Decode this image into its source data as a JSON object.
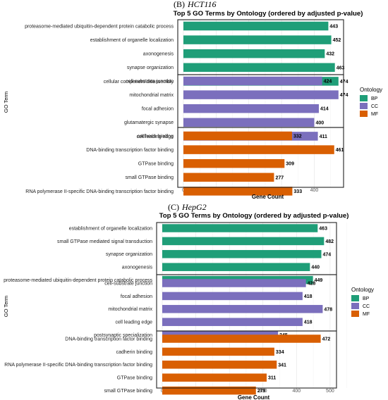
{
  "colors": {
    "BP": "#1f9e78",
    "CC": "#7b6fbd",
    "MF": "#d95f02"
  },
  "chart_data": [
    {
      "type": "bar",
      "orientation": "horizontal",
      "panel_label": "(B)",
      "panel_name": "HCT116",
      "title": "Top 5 GO Terms by Ontology (ordered by adjusted p-value)",
      "xlabel": "Gene Count",
      "ylabel": "GO Term",
      "xlim": [
        0,
        490
      ],
      "xticks": [
        0,
        100,
        200,
        300,
        400
      ],
      "grid": true,
      "legend": {
        "title": "Ontology",
        "position": "right",
        "items": [
          "BP",
          "CC",
          "MF"
        ]
      },
      "groups": [
        {
          "ontology": "BP",
          "terms": [
            {
              "term": "proteasome-mediated ubiquitin-dependent protein catabolic process",
              "count": 443
            },
            {
              "term": "establishment of organelle localization",
              "count": 452
            },
            {
              "term": "axonogenesis",
              "count": 432
            },
            {
              "term": "synapse organization",
              "count": 463
            },
            {
              "term": "cellular component disassembly",
              "count": 474
            }
          ]
        },
        {
          "ontology": "CC",
          "terms": [
            {
              "term": "cell-substrate junction",
              "count": 424
            },
            {
              "term": "mitochondrial matrix",
              "count": 474
            },
            {
              "term": "focal adhesion",
              "count": 414
            },
            {
              "term": "glutamatergic synapse",
              "count": 400
            },
            {
              "term": "cell leading edge",
              "count": 411
            }
          ]
        },
        {
          "ontology": "MF",
          "terms": [
            {
              "term": "cadherin binding",
              "count": 332
            },
            {
              "term": "DNA-binding transcription factor binding",
              "count": 461
            },
            {
              "term": "GTPase binding",
              "count": 309
            },
            {
              "term": "small GTPase binding",
              "count": 277
            },
            {
              "term": "RNA polymerase II-specific DNA-binding transcription factor binding",
              "count": 333
            }
          ]
        }
      ]
    },
    {
      "type": "bar",
      "orientation": "horizontal",
      "panel_label": "(C)",
      "panel_name": "HepG2",
      "title": "Top 5 GO Terms by Ontology (ordered by adjusted p-value)",
      "xlabel": "Gene Count",
      "ylabel": "GO Term",
      "xlim": [
        0,
        500
      ],
      "xticks": [
        0,
        100,
        200,
        300,
        400,
        500
      ],
      "grid": true,
      "legend": {
        "title": "Ontology",
        "position": "right",
        "items": [
          "BP",
          "CC",
          "MF"
        ]
      },
      "groups": [
        {
          "ontology": "BP",
          "terms": [
            {
              "term": "establishment of organelle localization",
              "count": 463
            },
            {
              "term": "small GTPase mediated signal transduction",
              "count": 482
            },
            {
              "term": "synapse organization",
              "count": 474
            },
            {
              "term": "axonogenesis",
              "count": 440
            },
            {
              "term": "proteasome-mediated ubiquitin-dependent protein catabolic process",
              "count": 449
            }
          ]
        },
        {
          "ontology": "CC",
          "terms": [
            {
              "term": "cell-substrate junction",
              "count": 428
            },
            {
              "term": "focal adhesion",
              "count": 418
            },
            {
              "term": "mitochondrial matrix",
              "count": 478
            },
            {
              "term": "cell leading edge",
              "count": 418
            },
            {
              "term": "postsynaptic specialization",
              "count": 345
            }
          ]
        },
        {
          "ontology": "MF",
          "terms": [
            {
              "term": "DNA-binding transcription factor binding",
              "count": 472
            },
            {
              "term": "cadherin binding",
              "count": 334
            },
            {
              "term": "RNA polymerase II-specific DNA-binding transcription factor binding",
              "count": 341
            },
            {
              "term": "GTPase binding",
              "count": 311
            },
            {
              "term": "small GTPase binding",
              "count": 279
            }
          ]
        }
      ]
    }
  ]
}
